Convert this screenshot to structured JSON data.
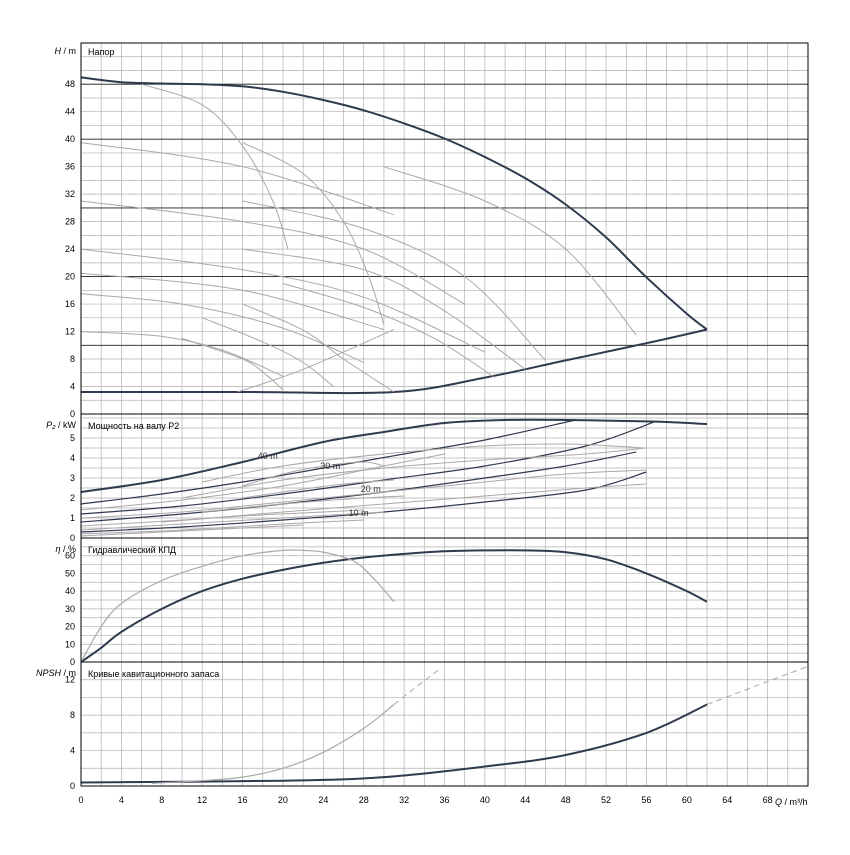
{
  "colors": {
    "grid": "#b0b0b0",
    "axis": "#000000",
    "main": "#2e3a4d",
    "light": "#a9a9a9"
  },
  "x_axis": {
    "label_italic": "Q",
    "label_rest": " / m³/h",
    "ticks": [
      "0",
      "4",
      "8",
      "12",
      "16",
      "20",
      "24",
      "28",
      "32",
      "36",
      "40",
      "44",
      "48",
      "52",
      "56",
      "60",
      "64",
      "68"
    ]
  },
  "chart_data": [
    {
      "type": "line",
      "title": "Напор",
      "ylabel_italic": "H",
      "ylabel_rest": " / m",
      "xlim": [
        0,
        72
      ],
      "ylim": [
        0,
        54
      ],
      "yticks": [
        "0",
        "4",
        "8",
        "12",
        "16",
        "20",
        "24",
        "28",
        "32",
        "36",
        "40",
        "44",
        "48"
      ],
      "series": [
        {
          "role": "max",
          "x": [
            0,
            4,
            8,
            12,
            16,
            20,
            24,
            28,
            32,
            36,
            40,
            44,
            48,
            52,
            56,
            60,
            62
          ],
          "y": [
            49,
            48.3,
            48.1,
            48,
            47.7,
            46.9,
            45.7,
            44.2,
            42.3,
            40.1,
            37.4,
            34.3,
            30.5,
            25.7,
            19.9,
            14.6,
            12.3
          ]
        },
        {
          "role": "min",
          "x": [
            0,
            16,
            31,
            40,
            48,
            56,
            62
          ],
          "y": [
            3.2,
            3.2,
            3.2,
            5.3,
            7.8,
            10.3,
            12.3
          ]
        },
        {
          "role": "control",
          "x": [
            0,
            16,
            31
          ],
          "y": [
            39.5,
            36,
            29
          ]
        },
        {
          "role": "control",
          "x": [
            0,
            16,
            28,
            38
          ],
          "y": [
            31,
            28,
            24,
            16
          ]
        },
        {
          "role": "control",
          "x": [
            0,
            16,
            28,
            40
          ],
          "y": [
            24,
            21,
            17,
            9
          ]
        },
        {
          "role": "control",
          "x": [
            0,
            16,
            30
          ],
          "y": [
            20.5,
            18,
            12.3
          ]
        },
        {
          "role": "control",
          "x": [
            0,
            10,
            20,
            28
          ],
          "y": [
            17.5,
            16,
            12.5,
            7.5
          ]
        },
        {
          "role": "control",
          "x": [
            0,
            8,
            14,
            20
          ],
          "y": [
            12,
            11.3,
            9.3,
            5.5
          ]
        },
        {
          "role": "control",
          "x": [
            6,
            12,
            16,
            19,
            20.5
          ],
          "y": [
            48,
            45,
            39,
            31,
            24
          ]
        },
        {
          "role": "control",
          "x": [
            16,
            22,
            26,
            28.5,
            30
          ],
          "y": [
            39.5,
            35,
            28,
            20,
            13
          ]
        },
        {
          "role": "control",
          "x": [
            30,
            40,
            48,
            55
          ],
          "y": [
            36,
            31,
            24,
            11.5
          ]
        },
        {
          "role": "control",
          "x": [
            16,
            28,
            38,
            46
          ],
          "y": [
            31,
            27,
            20,
            7.8
          ]
        },
        {
          "role": "control",
          "x": [
            16,
            28,
            36,
            44
          ],
          "y": [
            24,
            21,
            15,
            6.5
          ]
        },
        {
          "role": "control",
          "x": [
            20,
            28,
            35,
            41
          ],
          "y": [
            19,
            15.5,
            11,
            5.3
          ]
        },
        {
          "role": "control",
          "x": [
            16,
            22,
            26,
            31
          ],
          "y": [
            16,
            12.2,
            8,
            3.2
          ]
        },
        {
          "role": "control",
          "x": [
            12,
            18,
            22,
            25
          ],
          "y": [
            14,
            10.5,
            7.5,
            4
          ]
        },
        {
          "role": "control",
          "x": [
            10,
            16,
            18.5,
            20
          ],
          "y": [
            11,
            8,
            5.5,
            3.5
          ]
        },
        {
          "role": "control",
          "x": [
            15.5,
            22,
            31
          ],
          "y": [
            3.2,
            6.5,
            12.3
          ]
        }
      ]
    },
    {
      "type": "line",
      "title": "Мощность на валу P2",
      "ylabel_italic": "P₂",
      "ylabel_rest": " / kW",
      "xlim": [
        0,
        72
      ],
      "ylim": [
        0,
        6.2
      ],
      "yticks": [
        "0",
        "1",
        "2",
        "3",
        "4",
        "5"
      ],
      "annotations": [
        {
          "text": "40 m",
          "x": 17.5,
          "y": 3.95
        },
        {
          "text": "30 m",
          "x": 23.7,
          "y": 3.45
        },
        {
          "text": "20 m",
          "x": 27.7,
          "y": 2.3
        },
        {
          "text": "10 m",
          "x": 26.5,
          "y": 1.1
        }
      ],
      "series": [
        {
          "role": "max",
          "x": [
            0,
            8,
            16,
            24,
            30,
            36,
            42,
            48,
            54,
            58,
            62
          ],
          "y": [
            2.3,
            2.9,
            3.8,
            4.8,
            5.3,
            5.75,
            5.9,
            5.9,
            5.85,
            5.8,
            5.7
          ]
        },
        {
          "role": "speed",
          "x": [
            0,
            8,
            16,
            24,
            32,
            40,
            49
          ],
          "y": [
            1.7,
            2.2,
            2.8,
            3.5,
            4.2,
            4.9,
            5.9
          ]
        },
        {
          "role": "speed",
          "x": [
            0,
            10,
            20,
            30,
            40,
            50,
            57
          ],
          "y": [
            1.2,
            1.6,
            2.2,
            2.9,
            3.6,
            4.6,
            5.85
          ]
        },
        {
          "role": "speed",
          "x": [
            0,
            10,
            20,
            30,
            40,
            48,
            55
          ],
          "y": [
            0.8,
            1.2,
            1.7,
            2.3,
            3,
            3.6,
            4.3
          ]
        },
        {
          "role": "speed",
          "x": [
            0,
            10,
            20,
            30,
            40,
            50,
            56
          ],
          "y": [
            0.3,
            0.55,
            0.9,
            1.3,
            1.8,
            2.4,
            3.3
          ]
        },
        {
          "role": "control",
          "x": [
            0,
            10,
            20,
            30,
            36
          ],
          "y": [
            1.4,
            1.9,
            2.6,
            3.6,
            4.2
          ]
        },
        {
          "role": "control",
          "x": [
            0,
            10,
            20,
            30,
            40,
            48,
            56
          ],
          "y": [
            1,
            1.3,
            1.8,
            2.3,
            2.8,
            3.2,
            3.4
          ]
        },
        {
          "role": "control",
          "x": [
            0,
            10,
            20,
            30,
            40,
            50,
            56
          ],
          "y": [
            0.6,
            0.9,
            1.3,
            1.7,
            2.1,
            2.5,
            2.7
          ]
        },
        {
          "role": "control",
          "x": [
            12,
            20,
            30,
            40,
            48,
            56
          ],
          "y": [
            2.8,
            3.6,
            4.2,
            4.6,
            4.7,
            4.5
          ]
        },
        {
          "role": "control",
          "x": [
            10,
            20,
            30,
            40,
            50,
            56
          ],
          "y": [
            2,
            2.9,
            3.5,
            3.9,
            4.2,
            4.5
          ]
        },
        {
          "role": "control",
          "x": [
            0,
            10,
            20,
            30
          ],
          "y": [
            0.4,
            0.7,
            1,
            1.3
          ]
        },
        {
          "role": "control",
          "x": [
            0,
            10,
            20,
            28
          ],
          "y": [
            0.2,
            0.4,
            0.7,
            0.9
          ]
        },
        {
          "role": "control",
          "x": [
            0,
            8,
            16,
            22
          ],
          "y": [
            0.1,
            0.3,
            0.5,
            0.65
          ]
        },
        {
          "role": "control",
          "x": [
            16,
            20,
            24,
            28,
            30
          ],
          "y": [
            2.6,
            3.2,
            3.6,
            3.8,
            3.6
          ]
        },
        {
          "role": "control",
          "x": [
            16,
            20,
            26,
            31
          ],
          "y": [
            2,
            2.3,
            2.7,
            2.9
          ]
        },
        {
          "role": "control",
          "x": [
            12,
            20,
            28,
            32
          ],
          "y": [
            1.3,
            1.7,
            2,
            2.1
          ]
        },
        {
          "role": "control",
          "x": [
            8,
            16,
            24,
            28
          ],
          "y": [
            0.8,
            1.1,
            1.3,
            1.4
          ]
        }
      ]
    },
    {
      "type": "line",
      "title": "Гидравлический КПД",
      "ylabel_italic": "η",
      "ylabel_rest": " / %",
      "xlim": [
        0,
        72
      ],
      "ylim": [
        0,
        70
      ],
      "yticks": [
        "0",
        "10",
        "20",
        "30",
        "40",
        "50",
        "60"
      ],
      "series": [
        {
          "role": "max",
          "x": [
            0,
            2,
            4,
            8,
            12,
            16,
            20,
            24,
            28,
            32,
            36,
            40,
            44,
            48,
            52,
            56,
            60,
            62
          ],
          "y": [
            0,
            8,
            17,
            30,
            40,
            47,
            52,
            56,
            59,
            61,
            62.5,
            63,
            63,
            62,
            58,
            50,
            40,
            34
          ]
        },
        {
          "role": "min",
          "x": [
            0,
            2,
            4,
            8,
            12,
            16,
            20,
            22,
            24,
            27,
            29,
            31
          ],
          "y": [
            0,
            20,
            33,
            46,
            54,
            60,
            63,
            63,
            62,
            57,
            47,
            34
          ]
        }
      ]
    },
    {
      "type": "line",
      "title": "Кривые кавитационного запаса",
      "ylabel_italic": "NPSH",
      "ylabel_rest": " / m",
      "xlim": [
        0,
        72
      ],
      "ylim": [
        0,
        14
      ],
      "yticks": [
        "0",
        "4",
        "8",
        "12"
      ],
      "series": [
        {
          "role": "max",
          "x": [
            0,
            20,
            30,
            40,
            48,
            56,
            62
          ],
          "y": [
            0.4,
            0.6,
            1,
            2.2,
            3.5,
            6,
            9.2
          ]
        },
        {
          "role": "min",
          "x": [
            7,
            12,
            16,
            20,
            24,
            28,
            31
          ],
          "y": [
            0.3,
            0.6,
            1,
            2,
            3.8,
            6.5,
            9.2
          ]
        },
        {
          "role": "ext",
          "dashed": true,
          "x": [
            62,
            68,
            72
          ],
          "y": [
            9.2,
            11.8,
            13.5
          ]
        },
        {
          "role": "ext",
          "dashed": true,
          "x": [
            31,
            33,
            35.5
          ],
          "y": [
            9.2,
            11,
            13.2
          ]
        }
      ]
    }
  ]
}
